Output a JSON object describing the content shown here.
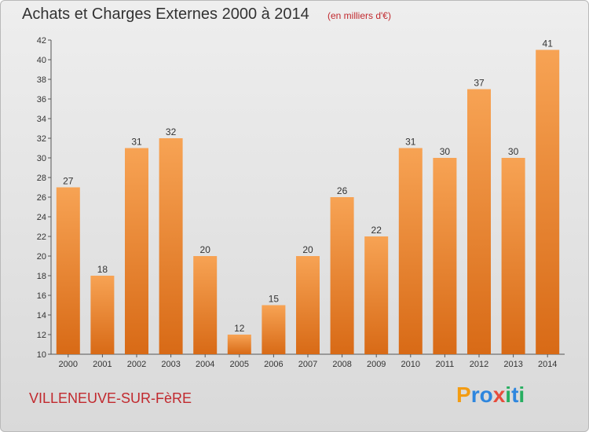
{
  "title": "Achats et Charges Externes 2000 à 2014",
  "subtitle": "(en milliers d'€)",
  "commune": "VILLENEUVE-SUR-FèRE",
  "logo": {
    "letters": [
      "P",
      "r",
      "o",
      "x",
      "i",
      "t",
      "i"
    ],
    "colors": [
      "#f39c12",
      "#2e86de",
      "#2e86de",
      "#e74c3c",
      "#27ae60",
      "#2e86de",
      "#27ae60"
    ]
  },
  "colors": {
    "bar_light": "#f7a354",
    "bar_dark": "#d86a16",
    "title": "#333333",
    "accent": "#c1292e"
  },
  "chart_data": {
    "type": "bar",
    "categories": [
      "2000",
      "2001",
      "2002",
      "2003",
      "2004",
      "2005",
      "2006",
      "2007",
      "2008",
      "2009",
      "2010",
      "2011",
      "2012",
      "2013",
      "2014"
    ],
    "values": [
      27,
      18,
      31,
      32,
      20,
      12,
      15,
      20,
      26,
      22,
      31,
      30,
      37,
      30,
      41
    ],
    "title": "Achats et Charges Externes 2000 à 2014",
    "subtitle": "(en milliers d'€)",
    "ylim": [
      10,
      42
    ],
    "yticks": [
      10,
      12,
      14,
      16,
      18,
      20,
      22,
      24,
      26,
      28,
      30,
      32,
      34,
      36,
      38,
      40,
      42
    ],
    "grid": false,
    "data_labels": true
  }
}
